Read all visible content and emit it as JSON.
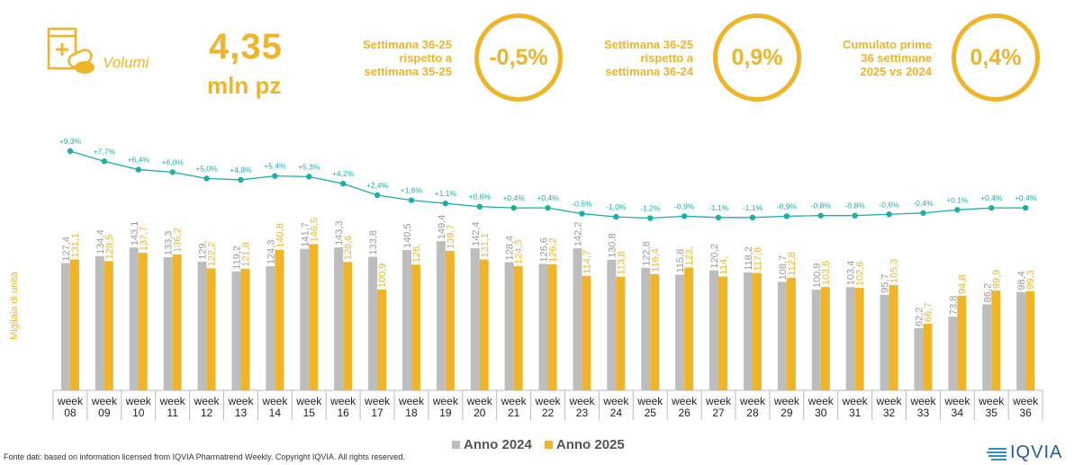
{
  "header": {
    "kpi_label": "Volumi",
    "kpi_value": "4,35",
    "kpi_unit": "mln pz",
    "compare": [
      {
        "text_lines": [
          "Settimana 36-25",
          "rispetto a",
          "settimana 35-25"
        ],
        "value": "-0,5%"
      },
      {
        "text_lines": [
          "Settimana 36-25",
          "rispetto a",
          "settimana 36-24"
        ],
        "value": "0,9%"
      },
      {
        "text_lines": [
          "Cumulato prime",
          "36 settimane",
          "2025 vs 2024"
        ],
        "value": "0,4%"
      }
    ]
  },
  "chart_data": {
    "type": "bar",
    "ylabel": "Migliaia di unità",
    "categories": [
      "08",
      "09",
      "10",
      "11",
      "12",
      "13",
      "14",
      "15",
      "16",
      "17",
      "18",
      "19",
      "20",
      "21",
      "22",
      "23",
      "24",
      "25",
      "26",
      "27",
      "28",
      "29",
      "30",
      "31",
      "32",
      "33",
      "34",
      "35",
      "36"
    ],
    "category_prefix": "week",
    "series": [
      {
        "name": "Anno 2024",
        "color": "#bdbdbd",
        "values": [
          127.4,
          134.4,
          143.1,
          133.3,
          129,
          119.2,
          124.3,
          141.7,
          143.3,
          133.8,
          140.5,
          149.4,
          142.4,
          128.4,
          126.6,
          142.2,
          130.8,
          122.8,
          115.8,
          120.2,
          118.2,
          108.7,
          100.9,
          103.4,
          95.7,
          62.2,
          73.8,
          86.2,
          98.4
        ],
        "labels": [
          "127,4",
          "134,4",
          "143,1",
          "133,3",
          "129,",
          "119,2",
          "124,3",
          "141,7",
          "143,3",
          "133,8",
          "140,5",
          "149,4",
          "142,4",
          "128,4",
          "126,6",
          "142,2",
          "130,8",
          "122,8",
          "115,8",
          "120,2",
          "118,2",
          "108,7",
          "100,9",
          "103,4",
          "95,7",
          "62,2",
          "73,8",
          "86,2",
          "98,4"
        ]
      },
      {
        "name": "Anno 2025",
        "color": "#f0b429",
        "values": [
          131.1,
          129.5,
          137.7,
          136.2,
          122.2,
          121.8,
          140.8,
          146.5,
          128.6,
          100.9,
          126,
          139.7,
          131.1,
          124.3,
          126.2,
          114.7,
          113.8,
          116.4,
          123,
          114,
          117.6,
          112.8,
          103.5,
          102.6,
          105.3,
          66.7,
          94.8,
          99.9,
          99.3
        ],
        "labels": [
          "131,1",
          "129,5",
          "137,7",
          "136,2",
          "122,2",
          "121,8",
          "140,8",
          "146,5",
          "128,6",
          "100,9",
          "126,",
          "139,7",
          "131,1",
          "124,3",
          "126,2",
          "114,7",
          "113,8",
          "116,4",
          "123,",
          "114,",
          "117,6",
          "112,8",
          "103,5",
          "102,6",
          "105,3",
          "66,7",
          "94,8",
          "99,9",
          "99,3"
        ]
      }
    ],
    "cumulative_growth": {
      "values": [
        9.3,
        7.7,
        6.4,
        6.0,
        5.0,
        4.8,
        5.4,
        5.3,
        4.2,
        2.4,
        1.6,
        1.1,
        0.6,
        0.4,
        0.4,
        -0.5,
        -1.0,
        -1.2,
        -0.9,
        -1.1,
        -1.1,
        -0.9,
        -0.8,
        -0.8,
        -0.6,
        -0.4,
        0.1,
        0.4,
        0.4
      ],
      "labels": [
        "+9,3%",
        "+7,7%",
        "+6,4%",
        "+6,0%",
        "+5,0%",
        "+4,8%",
        "+5,4%",
        "+5,3%",
        "+4,2%",
        "+2,4%",
        "+1,6%",
        "+1,1%",
        "+0,6%",
        "+0,4%",
        "+0,4%",
        "-0,5%",
        "-1,0%",
        "-1,2%",
        "-0,9%",
        "-1,1%",
        "-1,1%",
        "-0,9%",
        "-0,8%",
        "-0,8%",
        "-0,6%",
        "-0,4%",
        "+0,1%",
        "+0,4%",
        "+0,4%"
      ],
      "color": "#1ab0a6"
    },
    "grid": false,
    "legend_position": "bottom-center"
  },
  "footer": {
    "source": "Fonte dati: based on information licensed from IQVIA Pharmatrend Weekly. Copyright IQVIA. All rights reserved.",
    "logo": "IQVIA"
  }
}
